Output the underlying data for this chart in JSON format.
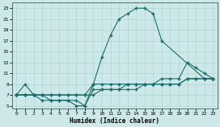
{
  "xlabel": "Humidex (Indice chaleur)",
  "bg_color": "#cde8e8",
  "line_color": "#1a6b6b",
  "grid_color": "#b8d8d8",
  "xlim": [
    -0.5,
    23.5
  ],
  "ylim": [
    4.5,
    24.0
  ],
  "xticks": [
    0,
    1,
    2,
    3,
    4,
    5,
    6,
    7,
    8,
    9,
    10,
    11,
    12,
    13,
    14,
    15,
    16,
    17,
    18,
    19,
    20,
    21,
    22,
    23
  ],
  "yticks": [
    5,
    7,
    9,
    11,
    13,
    15,
    17,
    19,
    21,
    23
  ],
  "curve1_x": [
    0,
    1,
    2,
    3,
    4,
    5,
    6,
    7,
    8,
    9,
    10,
    11,
    12,
    13,
    14,
    15,
    16,
    17,
    22,
    23
  ],
  "curve1_y": [
    7,
    9,
    7,
    7,
    6,
    6,
    6,
    6,
    5,
    9,
    14,
    18,
    21,
    22,
    23,
    23,
    22,
    17,
    10,
    10
  ],
  "curve2_x": [
    0,
    1,
    2,
    3,
    4,
    5,
    6,
    7,
    8,
    9,
    10,
    11,
    12,
    13,
    14,
    15,
    16,
    17,
    18,
    19,
    20,
    21,
    22,
    23
  ],
  "curve2_y": [
    7,
    7,
    7,
    7,
    7,
    7,
    7,
    7,
    7,
    9,
    9,
    9,
    9,
    9,
    9,
    9,
    9,
    10,
    10,
    10,
    13,
    12,
    11,
    10
  ],
  "curve3_x": [
    0,
    1,
    2,
    3,
    4,
    5,
    6,
    7,
    8,
    9,
    10,
    11,
    12,
    13,
    14,
    15,
    16,
    17,
    18,
    19,
    20,
    21,
    22,
    23
  ],
  "curve3_y": [
    7,
    7,
    7,
    7,
    7,
    7,
    7,
    7,
    7,
    7,
    8,
    8,
    8,
    9,
    9,
    9,
    9,
    9,
    9,
    9,
    10,
    10,
    10,
    10
  ],
  "curve4_x": [
    0,
    1,
    2,
    3,
    4,
    5,
    6,
    7,
    8,
    9,
    10,
    11,
    12,
    13,
    14,
    15,
    16,
    17,
    18,
    19,
    20,
    21,
    22,
    23
  ],
  "curve4_y": [
    7,
    7,
    7,
    6,
    6,
    6,
    6,
    5,
    5,
    8,
    8,
    8,
    8,
    8,
    8,
    9,
    9,
    9,
    9,
    9,
    10,
    10,
    10,
    10
  ]
}
